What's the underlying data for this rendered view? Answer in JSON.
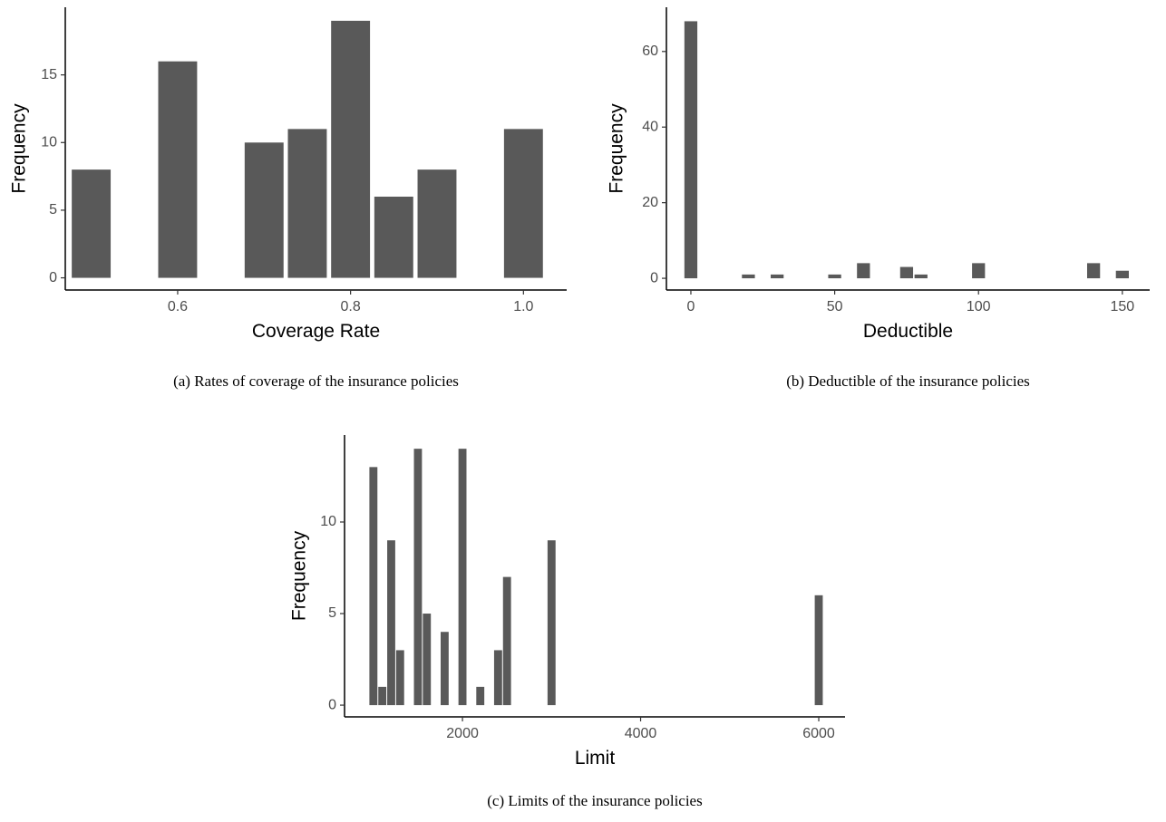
{
  "chart_data": [
    {
      "type": "bar",
      "caption": "(a) Rates of coverage of the insurance policies",
      "xlabel": "Coverage Rate",
      "ylabel": "Frequency",
      "color": "#595959",
      "x": [
        0.5,
        0.6,
        0.7,
        0.75,
        0.8,
        0.85,
        0.9,
        1.0
      ],
      "values": [
        8,
        16,
        10,
        11,
        19,
        6,
        8,
        11
      ],
      "xlim": [
        0.47,
        1.05
      ],
      "xticks": [
        0.6,
        0.8,
        {
          "value": 1.0,
          "label": "1.0"
        }
      ],
      "ylim": [
        -0.9,
        20
      ],
      "yticks": [
        0,
        5,
        10,
        15
      ]
    },
    {
      "type": "bar",
      "caption": "(b) Deductible of the insurance policies",
      "xlabel": "Deductible",
      "ylabel": "Frequency",
      "color": "#595959",
      "x": [
        0,
        20,
        30,
        50,
        60,
        75,
        80,
        100,
        140,
        150
      ],
      "values": [
        68,
        1,
        1,
        1,
        4,
        3,
        1,
        4,
        4,
        2
      ],
      "xlim": [
        -8.5,
        159.5
      ],
      "xticks": [
        0,
        50,
        100,
        150
      ],
      "ylim": [
        -3.1,
        71.7
      ],
      "yticks": [
        0,
        20,
        40,
        60
      ]
    },
    {
      "type": "bar",
      "caption": "(c) Limits of the insurance policies",
      "xlabel": "Limit",
      "ylabel": "Frequency",
      "color": "#595959",
      "x": [
        1000,
        1100,
        1200,
        1300,
        1500,
        1600,
        1800,
        2000,
        2200,
        2400,
        2500,
        3000,
        6000
      ],
      "values": [
        13,
        1,
        9,
        3,
        14,
        5,
        4,
        14,
        1,
        3,
        7,
        9,
        6
      ],
      "xlim": [
        676,
        6295
      ],
      "xticks": [
        2000,
        4000,
        6000
      ],
      "ylim": [
        -0.64,
        14.75
      ],
      "yticks": [
        0,
        5,
        10
      ]
    }
  ]
}
